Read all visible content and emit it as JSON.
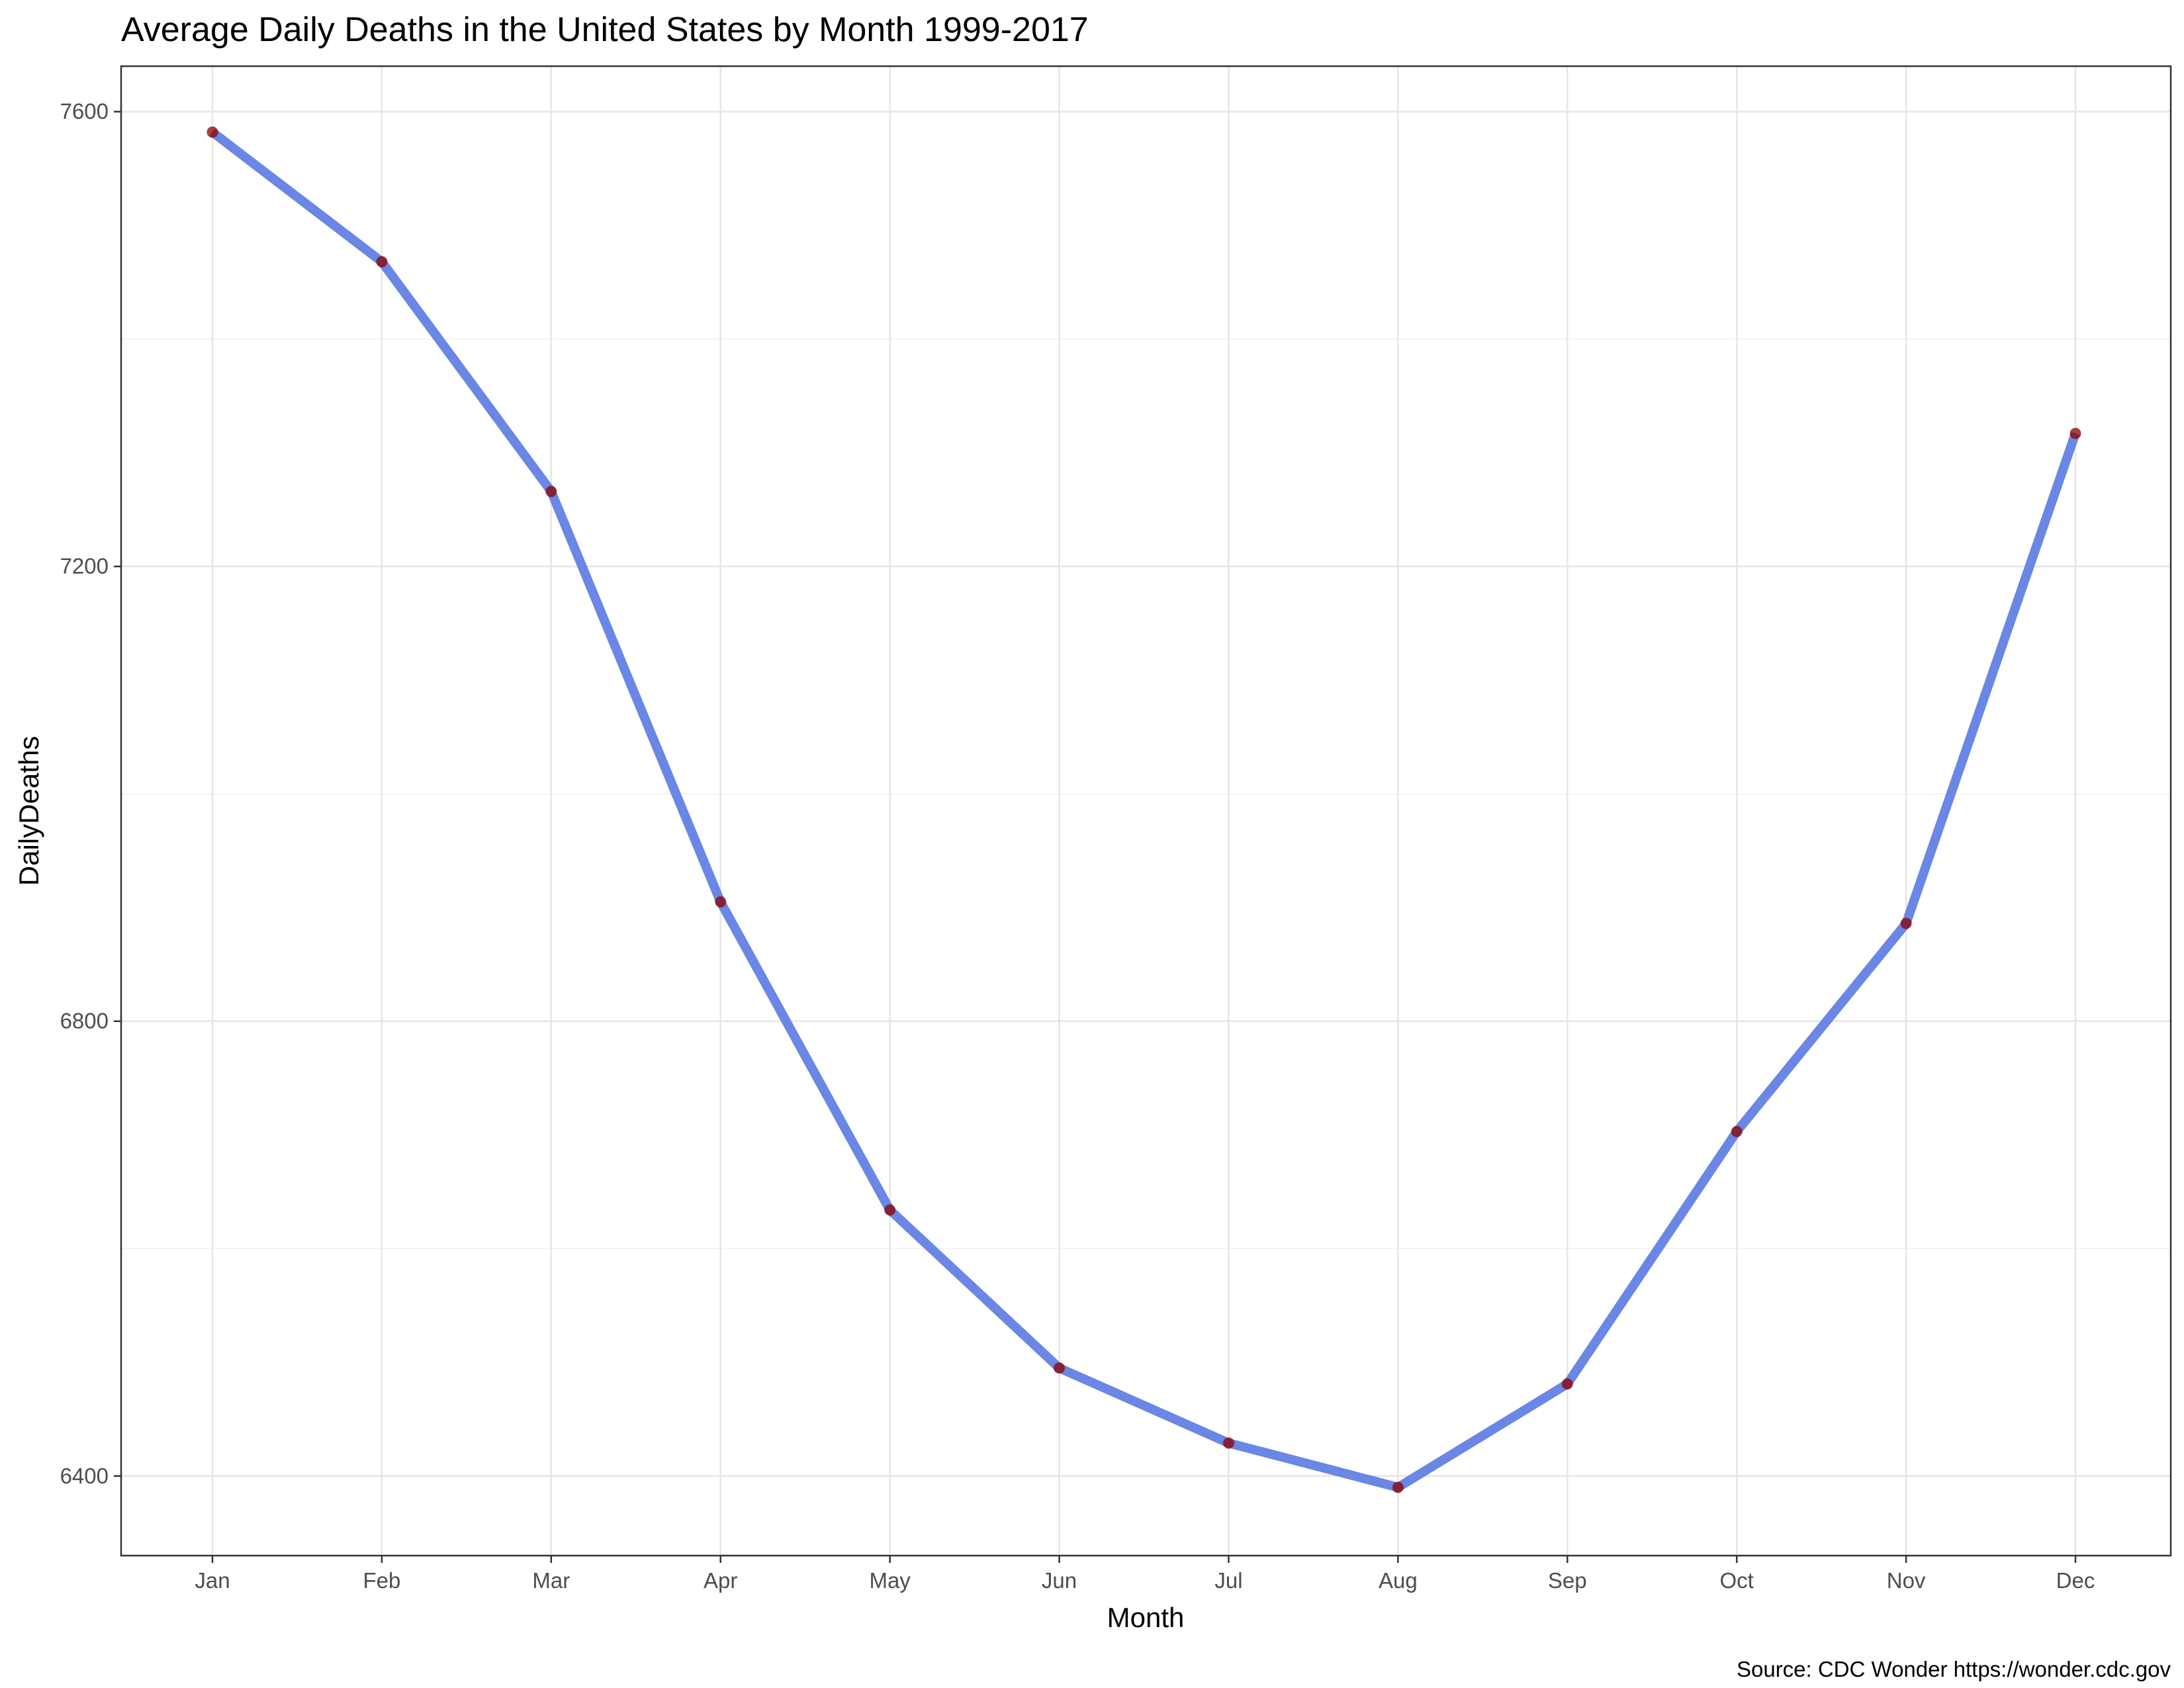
{
  "chart_data": {
    "type": "line",
    "title": "Average Daily Deaths in the United States by Month 1999-2017",
    "xlabel": "Month",
    "ylabel": "DailyDeaths",
    "caption": "Source:  CDC Wonder https://wonder.cdc.gov",
    "categories": [
      "Jan",
      "Feb",
      "Mar",
      "Apr",
      "May",
      "Jun",
      "Jul",
      "Aug",
      "Sep",
      "Oct",
      "Nov",
      "Dec"
    ],
    "values": [
      7582,
      7468,
      7266,
      6905,
      6634,
      6495,
      6429,
      6390,
      6481,
      6703,
      6886,
      7317
    ],
    "ylim": [
      6330,
      7640
    ],
    "yticks": [
      6400,
      6800,
      7200,
      7600
    ],
    "grid": true,
    "line_color": "#6A87E6",
    "point_color": "#8B0000",
    "legend": "none"
  }
}
